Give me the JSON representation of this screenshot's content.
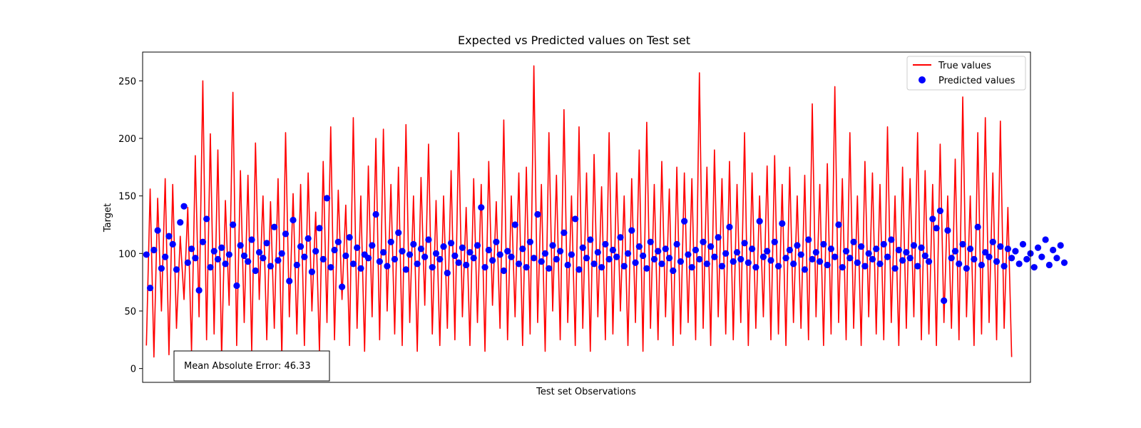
{
  "chart_data": {
    "type": "line",
    "title": "Expected vs Predicted values on Test set",
    "xlabel": "Test set Observations",
    "ylabel": "Target",
    "x_tick_labels_visible": false,
    "ylim": [
      -12,
      275
    ],
    "yticks": [
      0,
      50,
      100,
      150,
      200,
      250
    ],
    "xlim": [
      -1,
      235
    ],
    "grid": false,
    "legend": {
      "placement": "top-right",
      "entries": [
        {
          "label": "True values",
          "marker": "line",
          "color": "#ff0000"
        },
        {
          "label": "Predicted values",
          "marker": "dot",
          "color": "#0000ff"
        }
      ]
    },
    "annotation": {
      "text": "Mean Absolute Error: 46.33",
      "placement": "bottom-left"
    },
    "series": [
      {
        "name": "True values",
        "kind": "line",
        "color": "#ff0000",
        "values": [
          20,
          156,
          10,
          148,
          50,
          165,
          12,
          160,
          35,
          115,
          60,
          140,
          15,
          185,
          45,
          250,
          25,
          204,
          30,
          190,
          10,
          146,
          55,
          240,
          20,
          172,
          40,
          168,
          15,
          196,
          60,
          150,
          25,
          145,
          35,
          165,
          10,
          205,
          45,
          152,
          30,
          160,
          20,
          170,
          50,
          136,
          15,
          180,
          40,
          210,
          25,
          155,
          60,
          142,
          20,
          218,
          35,
          150,
          15,
          176,
          45,
          200,
          25,
          208,
          50,
          160,
          30,
          175,
          20,
          212,
          40,
          150,
          15,
          166,
          55,
          195,
          30,
          146,
          20,
          150,
          35,
          172,
          25,
          205,
          45,
          140,
          20,
          165,
          40,
          160,
          15,
          180,
          55,
          145,
          35,
          216,
          25,
          150,
          45,
          170,
          20,
          175,
          30,
          263,
          40,
          160,
          15,
          205,
          50,
          168,
          25,
          225,
          40,
          150,
          20,
          210,
          35,
          170,
          15,
          186,
          45,
          158,
          25,
          205,
          30,
          170,
          50,
          150,
          20,
          165,
          40,
          190,
          15,
          214,
          35,
          160,
          25,
          180,
          45,
          156,
          20,
          175,
          30,
          170,
          40,
          165,
          25,
          257,
          35,
          175,
          20,
          190,
          45,
          165,
          30,
          180,
          25,
          160,
          40,
          205,
          20,
          170,
          35,
          150,
          45,
          176,
          25,
          185,
          30,
          160,
          20,
          175,
          40,
          150,
          35,
          168,
          25,
          230,
          45,
          160,
          20,
          178,
          30,
          245,
          40,
          165,
          25,
          205,
          35,
          150,
          20,
          180,
          45,
          170,
          30,
          160,
          25,
          210,
          40,
          150,
          20,
          175,
          35,
          165,
          45,
          205,
          25,
          172,
          30,
          160,
          20,
          195,
          40,
          150,
          35,
          182,
          25,
          236,
          45,
          150,
          20,
          205,
          30,
          218,
          40,
          170,
          25,
          215,
          35,
          140,
          10
        ]
      },
      {
        "name": "Predicted values",
        "kind": "scatter",
        "color": "#0000ff",
        "values": [
          99,
          70,
          103,
          120,
          87,
          97,
          115,
          108,
          86,
          127,
          141,
          92,
          104,
          96,
          68,
          110,
          130,
          88,
          102,
          95,
          105,
          91,
          99,
          125,
          72,
          107,
          98,
          93,
          112,
          85,
          101,
          96,
          109,
          89,
          123,
          94,
          100,
          117,
          76,
          129,
          90,
          106,
          97,
          113,
          84,
          102,
          122,
          95,
          148,
          88,
          103,
          110,
          71,
          98,
          114,
          91,
          105,
          87,
          99,
          96,
          107,
          134,
          93,
          101,
          89,
          110,
          95,
          118,
          102,
          86,
          99,
          108,
          91,
          104,
          97,
          112,
          88,
          100,
          95,
          106,
          83,
          109,
          98,
          92,
          105,
          90,
          101,
          96,
          107,
          140,
          88,
          103,
          94,
          110,
          99,
          85,
          102,
          97,
          125,
          91,
          104,
          88,
          110,
          96,
          134,
          93,
          100,
          87,
          107,
          95,
          102,
          118,
          90,
          99,
          130,
          86,
          105,
          96,
          112,
          91,
          101,
          88,
          108,
          95,
          103,
          97,
          114,
          89,
          100,
          120,
          92,
          106,
          98,
          87,
          110,
          95,
          102,
          91,
          104,
          96,
          85,
          108,
          93,
          128,
          99,
          88,
          103,
          95,
          110,
          91,
          106,
          97,
          114,
          89,
          100,
          123,
          93,
          101,
          95,
          109,
          92,
          104,
          88,
          128,
          97,
          102,
          94,
          110,
          89,
          126,
          96,
          103,
          91,
          107,
          99,
          86,
          112,
          95,
          101,
          93,
          108,
          90,
          104,
          97,
          125,
          88,
          102,
          96,
          110,
          92,
          106,
          89,
          100,
          95,
          104,
          91,
          108,
          97,
          112,
          87,
          103,
          94,
          101,
          96,
          107,
          89,
          105,
          98,
          93,
          130,
          122,
          137,
          59,
          120,
          96,
          102,
          91,
          108,
          87,
          104,
          95,
          123,
          90,
          101,
          97,
          110,
          93,
          106,
          89,
          104,
          96,
          102,
          91,
          108,
          95,
          100,
          88,
          105,
          97,
          112,
          90,
          103,
          96,
          107,
          92
        ]
      }
    ]
  }
}
